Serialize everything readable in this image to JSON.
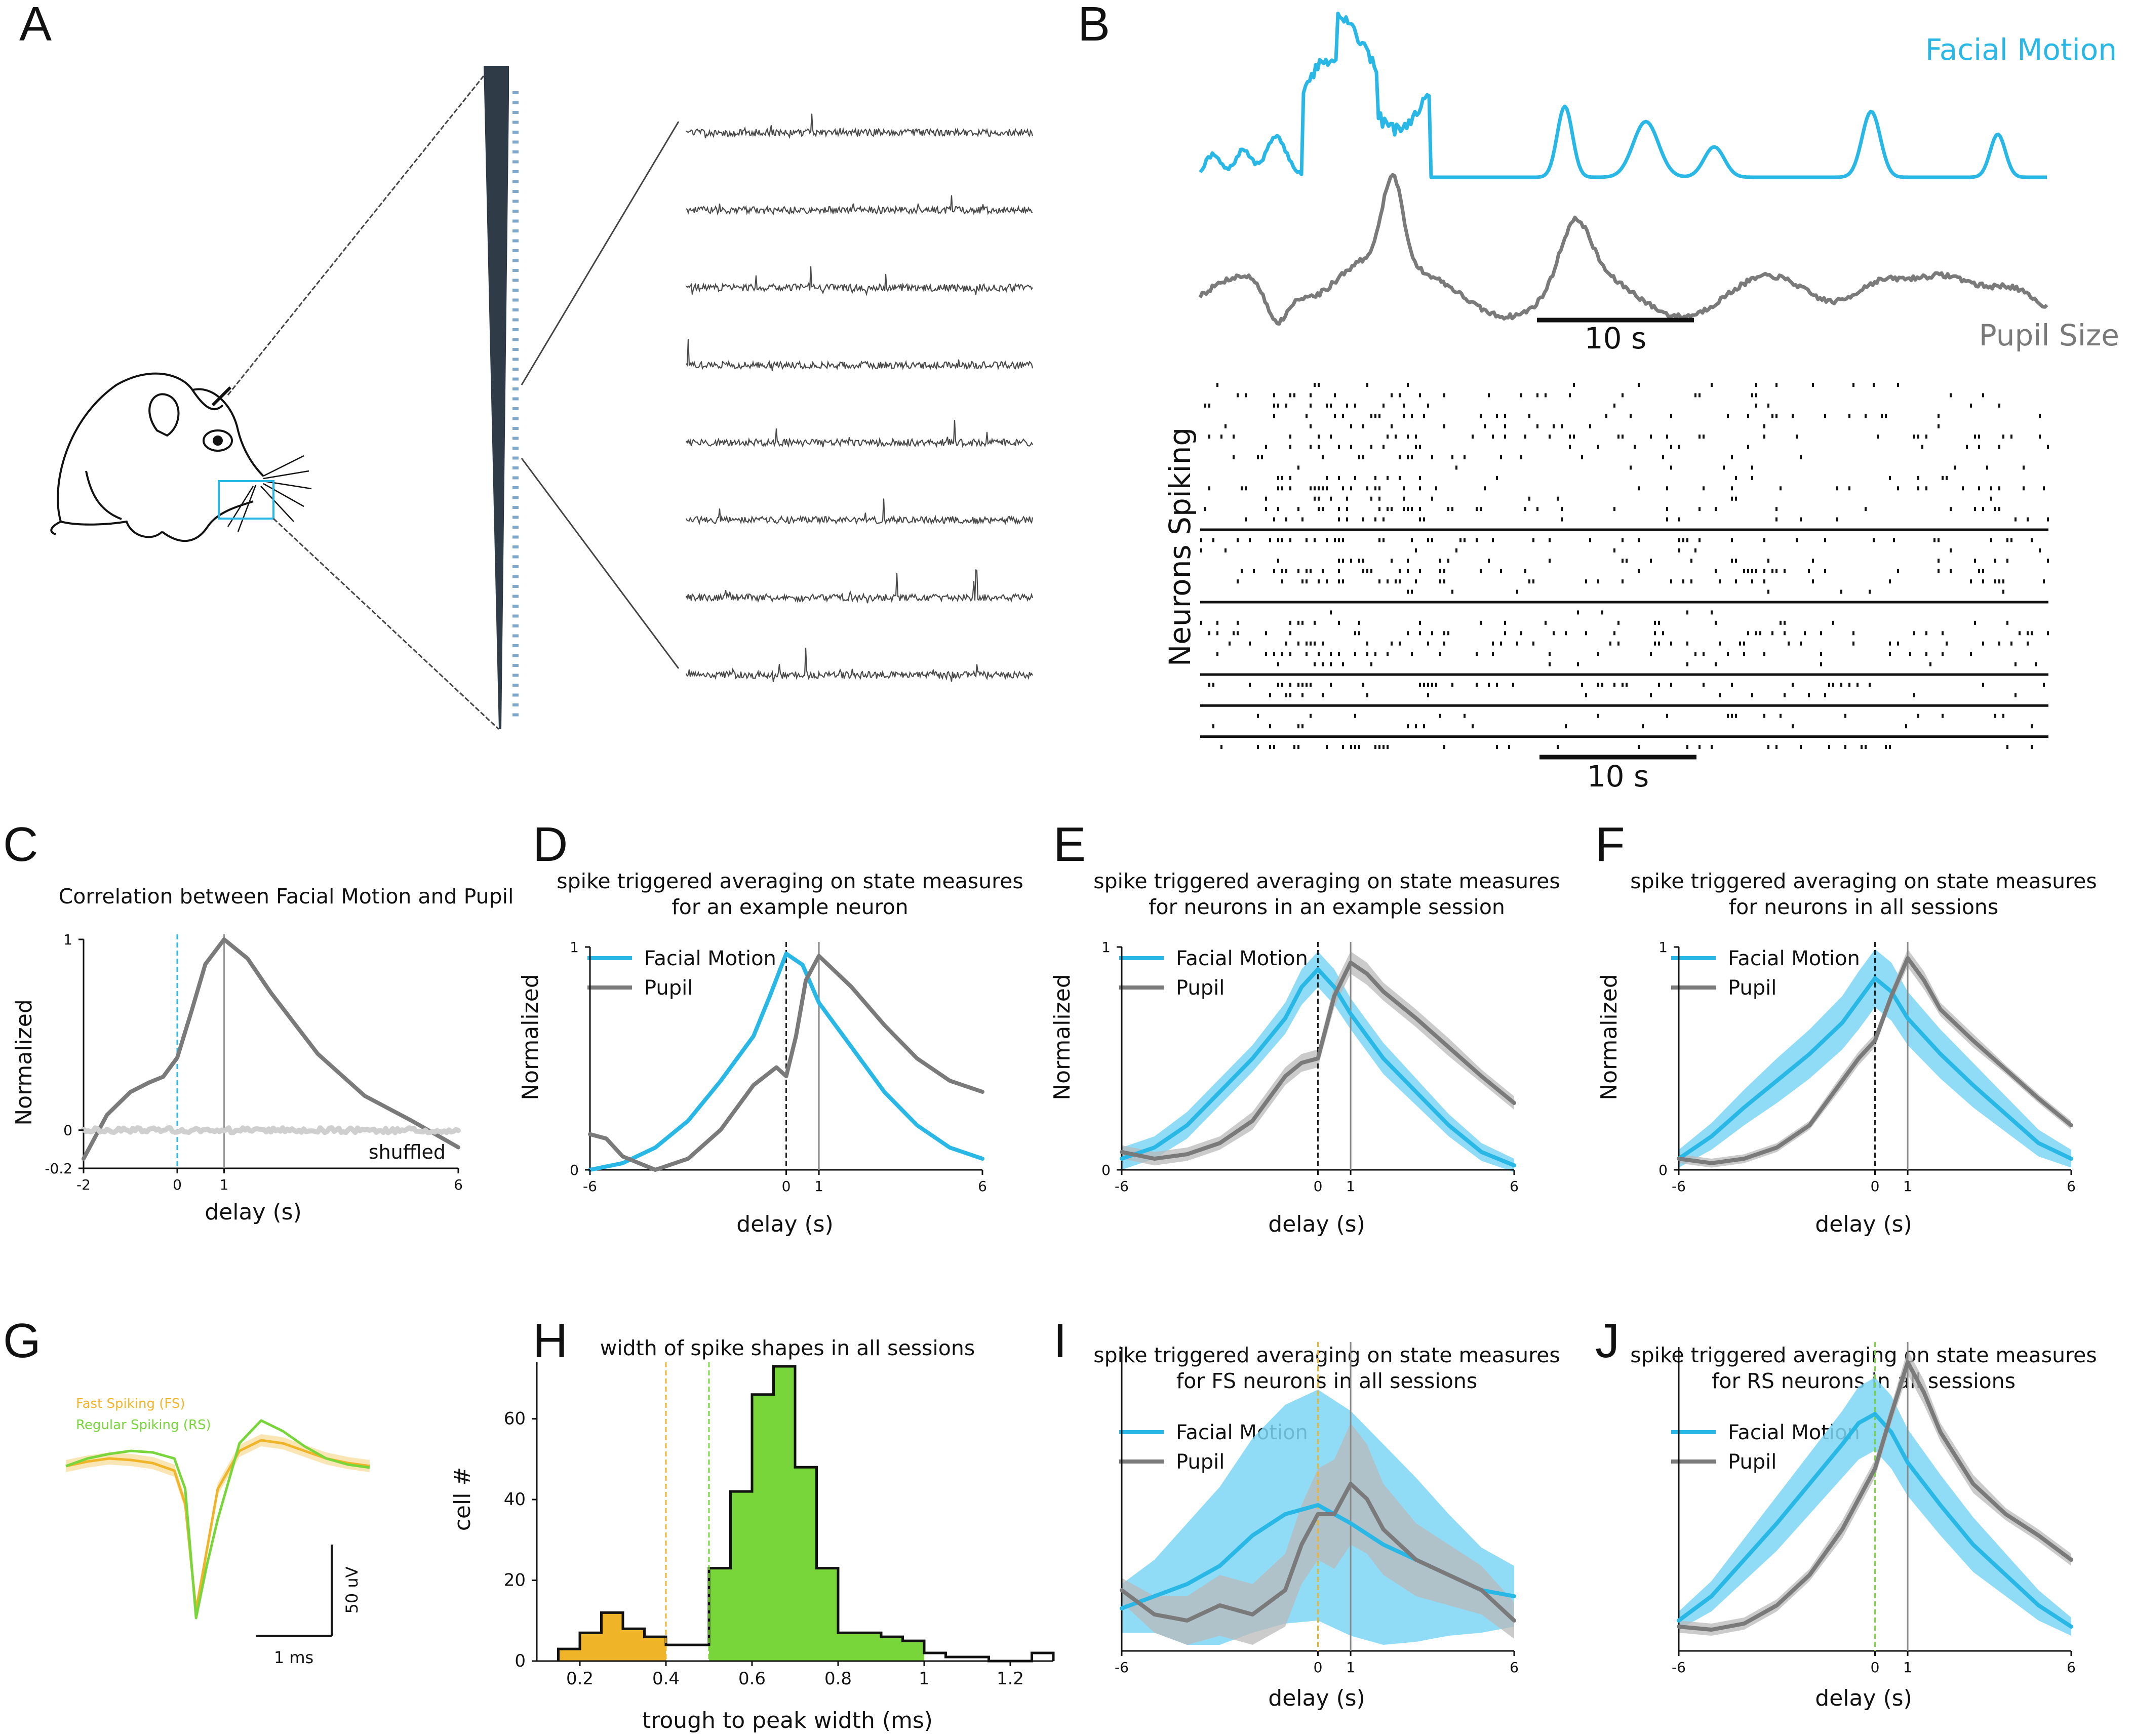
{
  "panel_labels": [
    "A",
    "B",
    "C",
    "D",
    "E",
    "F",
    "G",
    "H",
    "I",
    "J"
  ],
  "colors": {
    "facial": "#29b8e6",
    "facial_band": "#7dd6f4",
    "pupil": "#7a7a7a",
    "pupil_band": "#b9b9b9",
    "shuffled": "#cfcfcf",
    "fs": "#f0b429",
    "rs": "#79d63a",
    "trace": "#4a4a4a",
    "probe": "#2f3b47",
    "mouse_box": "#29b8e6"
  },
  "panelA": {
    "trace_count": 8,
    "probe_channels": 64
  },
  "panelB": {
    "facial_label": "Facial Motion",
    "pupil_label": "Pupil Size",
    "scale_label": "10 s",
    "raster_ylabel": "Neurons Spiking",
    "raster_scale_label": "10 s"
  },
  "chart_data": [
    {
      "id": "C",
      "type": "line",
      "title": "Correlation between Facial Motion and Pupil",
      "xlabel": "delay (s)",
      "ylabel": "Normalized",
      "xlim": [
        -2,
        6
      ],
      "ylim": [
        -0.2,
        1
      ],
      "xticks": [
        -2,
        0,
        1,
        6
      ],
      "yticks": [
        1,
        0,
        -0.2
      ],
      "xtick_labels": [
        "-2",
        "0",
        "1",
        "6"
      ],
      "ytick_labels": [
        "1",
        "0",
        "-0.2"
      ],
      "vlines": [
        {
          "x": 0,
          "style": "dashed",
          "color": "#29b8e6"
        },
        {
          "x": 1,
          "style": "solid",
          "color": "#9a9a9a"
        }
      ],
      "annotation": "shuffled",
      "series": [
        {
          "name": "correlation",
          "x": [
            -2,
            -1.5,
            -1,
            -0.6,
            -0.3,
            0,
            0.3,
            0.6,
            1,
            1.5,
            2,
            3,
            4,
            5,
            6
          ],
          "values": [
            -0.15,
            0.08,
            0.2,
            0.25,
            0.28,
            0.38,
            0.62,
            0.87,
            1.0,
            0.9,
            0.72,
            0.4,
            0.18,
            0.05,
            -0.09
          ]
        },
        {
          "name": "shuffled",
          "x": [
            -2,
            -1,
            0,
            1,
            2,
            3,
            4,
            5,
            6
          ],
          "values": [
            0.01,
            0.0,
            0.01,
            0.0,
            0.01,
            0.0,
            0.0,
            0.01,
            0.0
          ]
        }
      ]
    },
    {
      "id": "D",
      "type": "line",
      "title": "spike triggered averaging on state measures",
      "subtitle": "for an example neuron",
      "xlabel": "delay (s)",
      "ylabel": "Normalized",
      "xlim": [
        -6,
        6
      ],
      "ylim": [
        0,
        1
      ],
      "xticks": [
        -6,
        0,
        1,
        6
      ],
      "yticks": [
        1,
        0
      ],
      "xtick_labels": [
        "-6",
        "0",
        "1",
        "6"
      ],
      "ytick_labels": [
        "1",
        "0"
      ],
      "vlines": [
        {
          "x": 0,
          "style": "dashed",
          "color": "#222222"
        },
        {
          "x": 1,
          "style": "solid",
          "color": "#8a8a8a"
        }
      ],
      "legend": [
        "Facial Motion",
        "Pupil"
      ],
      "series": [
        {
          "name": "Facial Motion",
          "x": [
            -6,
            -5,
            -4,
            -3,
            -2,
            -1,
            -0.5,
            0,
            0.5,
            1,
            2,
            3,
            4,
            5,
            6
          ],
          "values": [
            0.0,
            0.03,
            0.1,
            0.22,
            0.4,
            0.6,
            0.78,
            0.97,
            0.92,
            0.75,
            0.55,
            0.35,
            0.2,
            0.1,
            0.05
          ]
        },
        {
          "name": "Pupil",
          "x": [
            -6,
            -5.5,
            -5,
            -4,
            -3,
            -2,
            -1,
            -0.3,
            0,
            0.3,
            0.6,
            1,
            2,
            3,
            4,
            5,
            6
          ],
          "values": [
            0.16,
            0.14,
            0.06,
            0.0,
            0.05,
            0.18,
            0.38,
            0.46,
            0.42,
            0.6,
            0.85,
            0.96,
            0.82,
            0.65,
            0.5,
            0.4,
            0.35
          ]
        }
      ]
    },
    {
      "id": "E",
      "type": "line",
      "title": "spike triggered averaging on state measures",
      "subtitle": "for neurons in an example session",
      "xlabel": "delay (s)",
      "ylabel": "Normalized",
      "xlim": [
        -6,
        6
      ],
      "ylim": [
        0,
        1
      ],
      "xticks": [
        -6,
        0,
        1,
        6
      ],
      "yticks": [
        1,
        0
      ],
      "xtick_labels": [
        "-6",
        "0",
        "1",
        "6"
      ],
      "ytick_labels": [
        "1",
        "0"
      ],
      "vlines": [
        {
          "x": 0,
          "style": "dashed",
          "color": "#222222"
        },
        {
          "x": 1,
          "style": "solid",
          "color": "#8a8a8a"
        }
      ],
      "legend": [
        "Facial Motion",
        "Pupil"
      ],
      "series": [
        {
          "name": "Facial Motion",
          "x": [
            -6,
            -5,
            -4,
            -3,
            -2,
            -1,
            -0.5,
            0,
            0.5,
            1,
            2,
            3,
            4,
            5,
            6
          ],
          "values": [
            0.05,
            0.1,
            0.2,
            0.35,
            0.5,
            0.68,
            0.82,
            0.9,
            0.82,
            0.7,
            0.5,
            0.35,
            0.2,
            0.08,
            0.02
          ],
          "band": [
            0.05,
            0.05,
            0.06,
            0.06,
            0.06,
            0.07,
            0.08,
            0.08,
            0.08,
            0.07,
            0.07,
            0.06,
            0.05,
            0.04,
            0.03
          ]
        },
        {
          "name": "Pupil",
          "x": [
            -6,
            -5,
            -4,
            -3,
            -2,
            -1,
            -0.5,
            0,
            0.5,
            1,
            1.5,
            2,
            3,
            4,
            5,
            6
          ],
          "values": [
            0.08,
            0.05,
            0.07,
            0.12,
            0.22,
            0.42,
            0.48,
            0.5,
            0.78,
            0.93,
            0.88,
            0.8,
            0.68,
            0.55,
            0.42,
            0.3
          ],
          "band": [
            0.03,
            0.03,
            0.03,
            0.03,
            0.04,
            0.04,
            0.04,
            0.04,
            0.05,
            0.05,
            0.05,
            0.04,
            0.04,
            0.04,
            0.03,
            0.03
          ]
        }
      ]
    },
    {
      "id": "F",
      "type": "line",
      "title": "spike triggered averaging on state measures",
      "subtitle": "for neurons in all sessions",
      "xlabel": "delay (s)",
      "ylabel": "Normalized",
      "xlim": [
        -6,
        6
      ],
      "ylim": [
        0,
        1
      ],
      "xticks": [
        -6,
        0,
        1,
        6
      ],
      "yticks": [
        1,
        0
      ],
      "xtick_labels": [
        "-6",
        "0",
        "1",
        "6"
      ],
      "ytick_labels": [
        "1",
        "0"
      ],
      "vlines": [
        {
          "x": 0,
          "style": "dashed",
          "color": "#222222"
        },
        {
          "x": 1,
          "style": "solid",
          "color": "#8a8a8a"
        }
      ],
      "legend": [
        "Facial Motion",
        "Pupil"
      ],
      "series": [
        {
          "name": "Facial Motion",
          "x": [
            -6,
            -5,
            -4,
            -3,
            -2,
            -1,
            -0.5,
            0,
            0.5,
            1,
            2,
            3,
            4,
            5,
            6
          ],
          "values": [
            0.05,
            0.15,
            0.28,
            0.4,
            0.52,
            0.66,
            0.76,
            0.86,
            0.8,
            0.68,
            0.52,
            0.38,
            0.25,
            0.12,
            0.05
          ],
          "band": [
            0.04,
            0.06,
            0.08,
            0.1,
            0.11,
            0.12,
            0.13,
            0.13,
            0.13,
            0.12,
            0.11,
            0.1,
            0.08,
            0.06,
            0.04
          ]
        },
        {
          "name": "Pupil",
          "x": [
            -6,
            -5,
            -4,
            -3,
            -2,
            -1,
            -0.5,
            0,
            0.5,
            1,
            1.5,
            2,
            3,
            4,
            5,
            6
          ],
          "values": [
            0.05,
            0.03,
            0.05,
            0.1,
            0.2,
            0.4,
            0.5,
            0.58,
            0.78,
            0.95,
            0.85,
            0.72,
            0.58,
            0.45,
            0.32,
            0.2
          ],
          "band": [
            0.02,
            0.02,
            0.02,
            0.02,
            0.02,
            0.03,
            0.03,
            0.03,
            0.03,
            0.04,
            0.04,
            0.03,
            0.03,
            0.02,
            0.02,
            0.02
          ]
        }
      ]
    },
    {
      "id": "G",
      "type": "line",
      "legend": [
        "Fast Spiking (FS)",
        "Regular Spiking (RS)"
      ],
      "scalebar": {
        "x_label": "1 ms",
        "y_label": "50 uV"
      },
      "series": [
        {
          "name": "Fast Spiking (FS)",
          "x": [
            0,
            0.2,
            0.4,
            0.6,
            0.8,
            1.0,
            1.1,
            1.2,
            1.3,
            1.4,
            1.6,
            1.8,
            2.0,
            2.2,
            2.4,
            2.6,
            2.8
          ],
          "values": [
            -5,
            -2,
            0,
            -1,
            -3,
            -8,
            -30,
            -100,
            -60,
            -20,
            5,
            12,
            10,
            5,
            0,
            -3,
            -5
          ]
        },
        {
          "name": "Regular Spiking (RS)",
          "x": [
            0,
            0.2,
            0.4,
            0.6,
            0.8,
            1.0,
            1.1,
            1.2,
            1.3,
            1.4,
            1.6,
            1.8,
            2.0,
            2.2,
            2.4,
            2.6,
            2.8
          ],
          "values": [
            -5,
            0,
            3,
            5,
            4,
            0,
            -20,
            -105,
            -70,
            -40,
            10,
            25,
            18,
            8,
            0,
            -4,
            -6
          ]
        }
      ]
    },
    {
      "id": "H",
      "type": "bar",
      "title": "width of spike shapes in all sessions",
      "xlabel": "trough to peak width (ms)",
      "ylabel": "cell #",
      "xlim": [
        0.1,
        1.3
      ],
      "ylim": [
        0,
        70
      ],
      "xticks": [
        0.2,
        0.4,
        0.6,
        0.8,
        1,
        1.2
      ],
      "yticks": [
        0,
        20,
        40,
        60
      ],
      "xtick_labels": [
        "0.2",
        "0.4",
        "0.6",
        "0.8",
        "1",
        "1.2"
      ],
      "ytick_labels": [
        "0",
        "20",
        "40",
        "60"
      ],
      "vlines": [
        {
          "x": 0.4,
          "style": "dashed",
          "color": "#f0b429"
        },
        {
          "x": 0.5,
          "style": "dashed",
          "color": "#79d63a"
        }
      ],
      "bin_width": 0.05,
      "bins_start": [
        0.15,
        0.2,
        0.25,
        0.3,
        0.35,
        0.4,
        0.45,
        0.5,
        0.55,
        0.6,
        0.65,
        0.7,
        0.75,
        0.8,
        0.85,
        0.9,
        0.95,
        1.0,
        1.05,
        1.1,
        1.15,
        1.2,
        1.25
      ],
      "values": [
        3,
        7,
        12,
        8,
        6,
        4,
        4,
        23,
        42,
        66,
        73,
        48,
        23,
        7,
        7,
        6,
        5,
        2,
        1,
        1,
        0,
        0,
        2
      ],
      "groups": [
        "FS",
        "FS",
        "FS",
        "FS",
        "FS",
        "none",
        "none",
        "RS",
        "RS",
        "RS",
        "RS",
        "RS",
        "RS",
        "RS",
        "RS",
        "RS",
        "RS",
        "none",
        "none",
        "none",
        "none",
        "none",
        "none"
      ]
    },
    {
      "id": "I",
      "type": "line",
      "title": "spike triggered averaging on state measures",
      "subtitle": "for FS neurons in all sessions",
      "xlabel": "delay (s)",
      "xlim": [
        -6,
        6
      ],
      "ylim": [
        0,
        1
      ],
      "xticks": [
        -6,
        0,
        1,
        6
      ],
      "xtick_labels": [
        "-6",
        "0",
        "1",
        "6"
      ],
      "vlines": [
        {
          "x": 0,
          "style": "dashed",
          "color": "#f0b429"
        },
        {
          "x": 1,
          "style": "solid",
          "color": "#8a8a8a"
        }
      ],
      "legend": [
        "Facial Motion",
        "Pupil"
      ],
      "series": [
        {
          "name": "Facial Motion",
          "x": [
            -6,
            -5,
            -4,
            -3,
            -2,
            -1,
            0,
            1,
            2,
            3,
            4,
            5,
            6
          ],
          "values": [
            0.14,
            0.18,
            0.22,
            0.28,
            0.38,
            0.45,
            0.48,
            0.42,
            0.35,
            0.3,
            0.25,
            0.2,
            0.18
          ],
          "band": [
            0.08,
            0.12,
            0.2,
            0.26,
            0.32,
            0.36,
            0.38,
            0.37,
            0.33,
            0.27,
            0.2,
            0.14,
            0.1
          ]
        },
        {
          "name": "Pupil",
          "x": [
            -6,
            -5,
            -4,
            -3,
            -2,
            -1,
            -0.5,
            0,
            0.5,
            1,
            1.5,
            2,
            3,
            4,
            5,
            6
          ],
          "values": [
            0.2,
            0.12,
            0.1,
            0.15,
            0.12,
            0.2,
            0.35,
            0.45,
            0.45,
            0.55,
            0.5,
            0.4,
            0.3,
            0.25,
            0.2,
            0.1
          ],
          "band": [
            0.04,
            0.06,
            0.08,
            0.1,
            0.1,
            0.12,
            0.13,
            0.15,
            0.18,
            0.2,
            0.18,
            0.15,
            0.12,
            0.1,
            0.08,
            0.06
          ]
        }
      ]
    },
    {
      "id": "J",
      "type": "line",
      "title": "spike triggered averaging on state measures",
      "subtitle": "for RS neurons in all sessions",
      "xlabel": "delay (s)",
      "xlim": [
        -6,
        6
      ],
      "ylim": [
        0,
        1
      ],
      "xticks": [
        -6,
        0,
        1,
        6
      ],
      "xtick_labels": [
        "-6",
        "0",
        "1",
        "6"
      ],
      "vlines": [
        {
          "x": 0,
          "style": "dashed",
          "color": "#79d63a"
        },
        {
          "x": 1,
          "style": "solid",
          "color": "#8a8a8a"
        }
      ],
      "legend": [
        "Facial Motion",
        "Pupil"
      ],
      "series": [
        {
          "name": "Facial Motion",
          "x": [
            -6,
            -5,
            -4,
            -3,
            -2,
            -1,
            -0.5,
            0,
            0.5,
            1,
            2,
            3,
            4,
            5,
            6
          ],
          "values": [
            0.1,
            0.18,
            0.3,
            0.42,
            0.55,
            0.68,
            0.75,
            0.78,
            0.72,
            0.62,
            0.48,
            0.35,
            0.25,
            0.15,
            0.08
          ],
          "band": [
            0.03,
            0.05,
            0.07,
            0.09,
            0.1,
            0.11,
            0.12,
            0.12,
            0.12,
            0.11,
            0.1,
            0.09,
            0.07,
            0.05,
            0.03
          ]
        },
        {
          "name": "Pupil",
          "x": [
            -6,
            -5,
            -4,
            -3,
            -2,
            -1,
            -0.5,
            0,
            0.5,
            1,
            1.5,
            2,
            3,
            4,
            5,
            6
          ],
          "values": [
            0.08,
            0.07,
            0.09,
            0.15,
            0.25,
            0.4,
            0.5,
            0.6,
            0.78,
            0.95,
            0.85,
            0.72,
            0.55,
            0.45,
            0.38,
            0.3
          ],
          "band": [
            0.02,
            0.02,
            0.02,
            0.02,
            0.02,
            0.03,
            0.03,
            0.03,
            0.03,
            0.04,
            0.04,
            0.03,
            0.03,
            0.02,
            0.02,
            0.02
          ]
        }
      ]
    }
  ]
}
